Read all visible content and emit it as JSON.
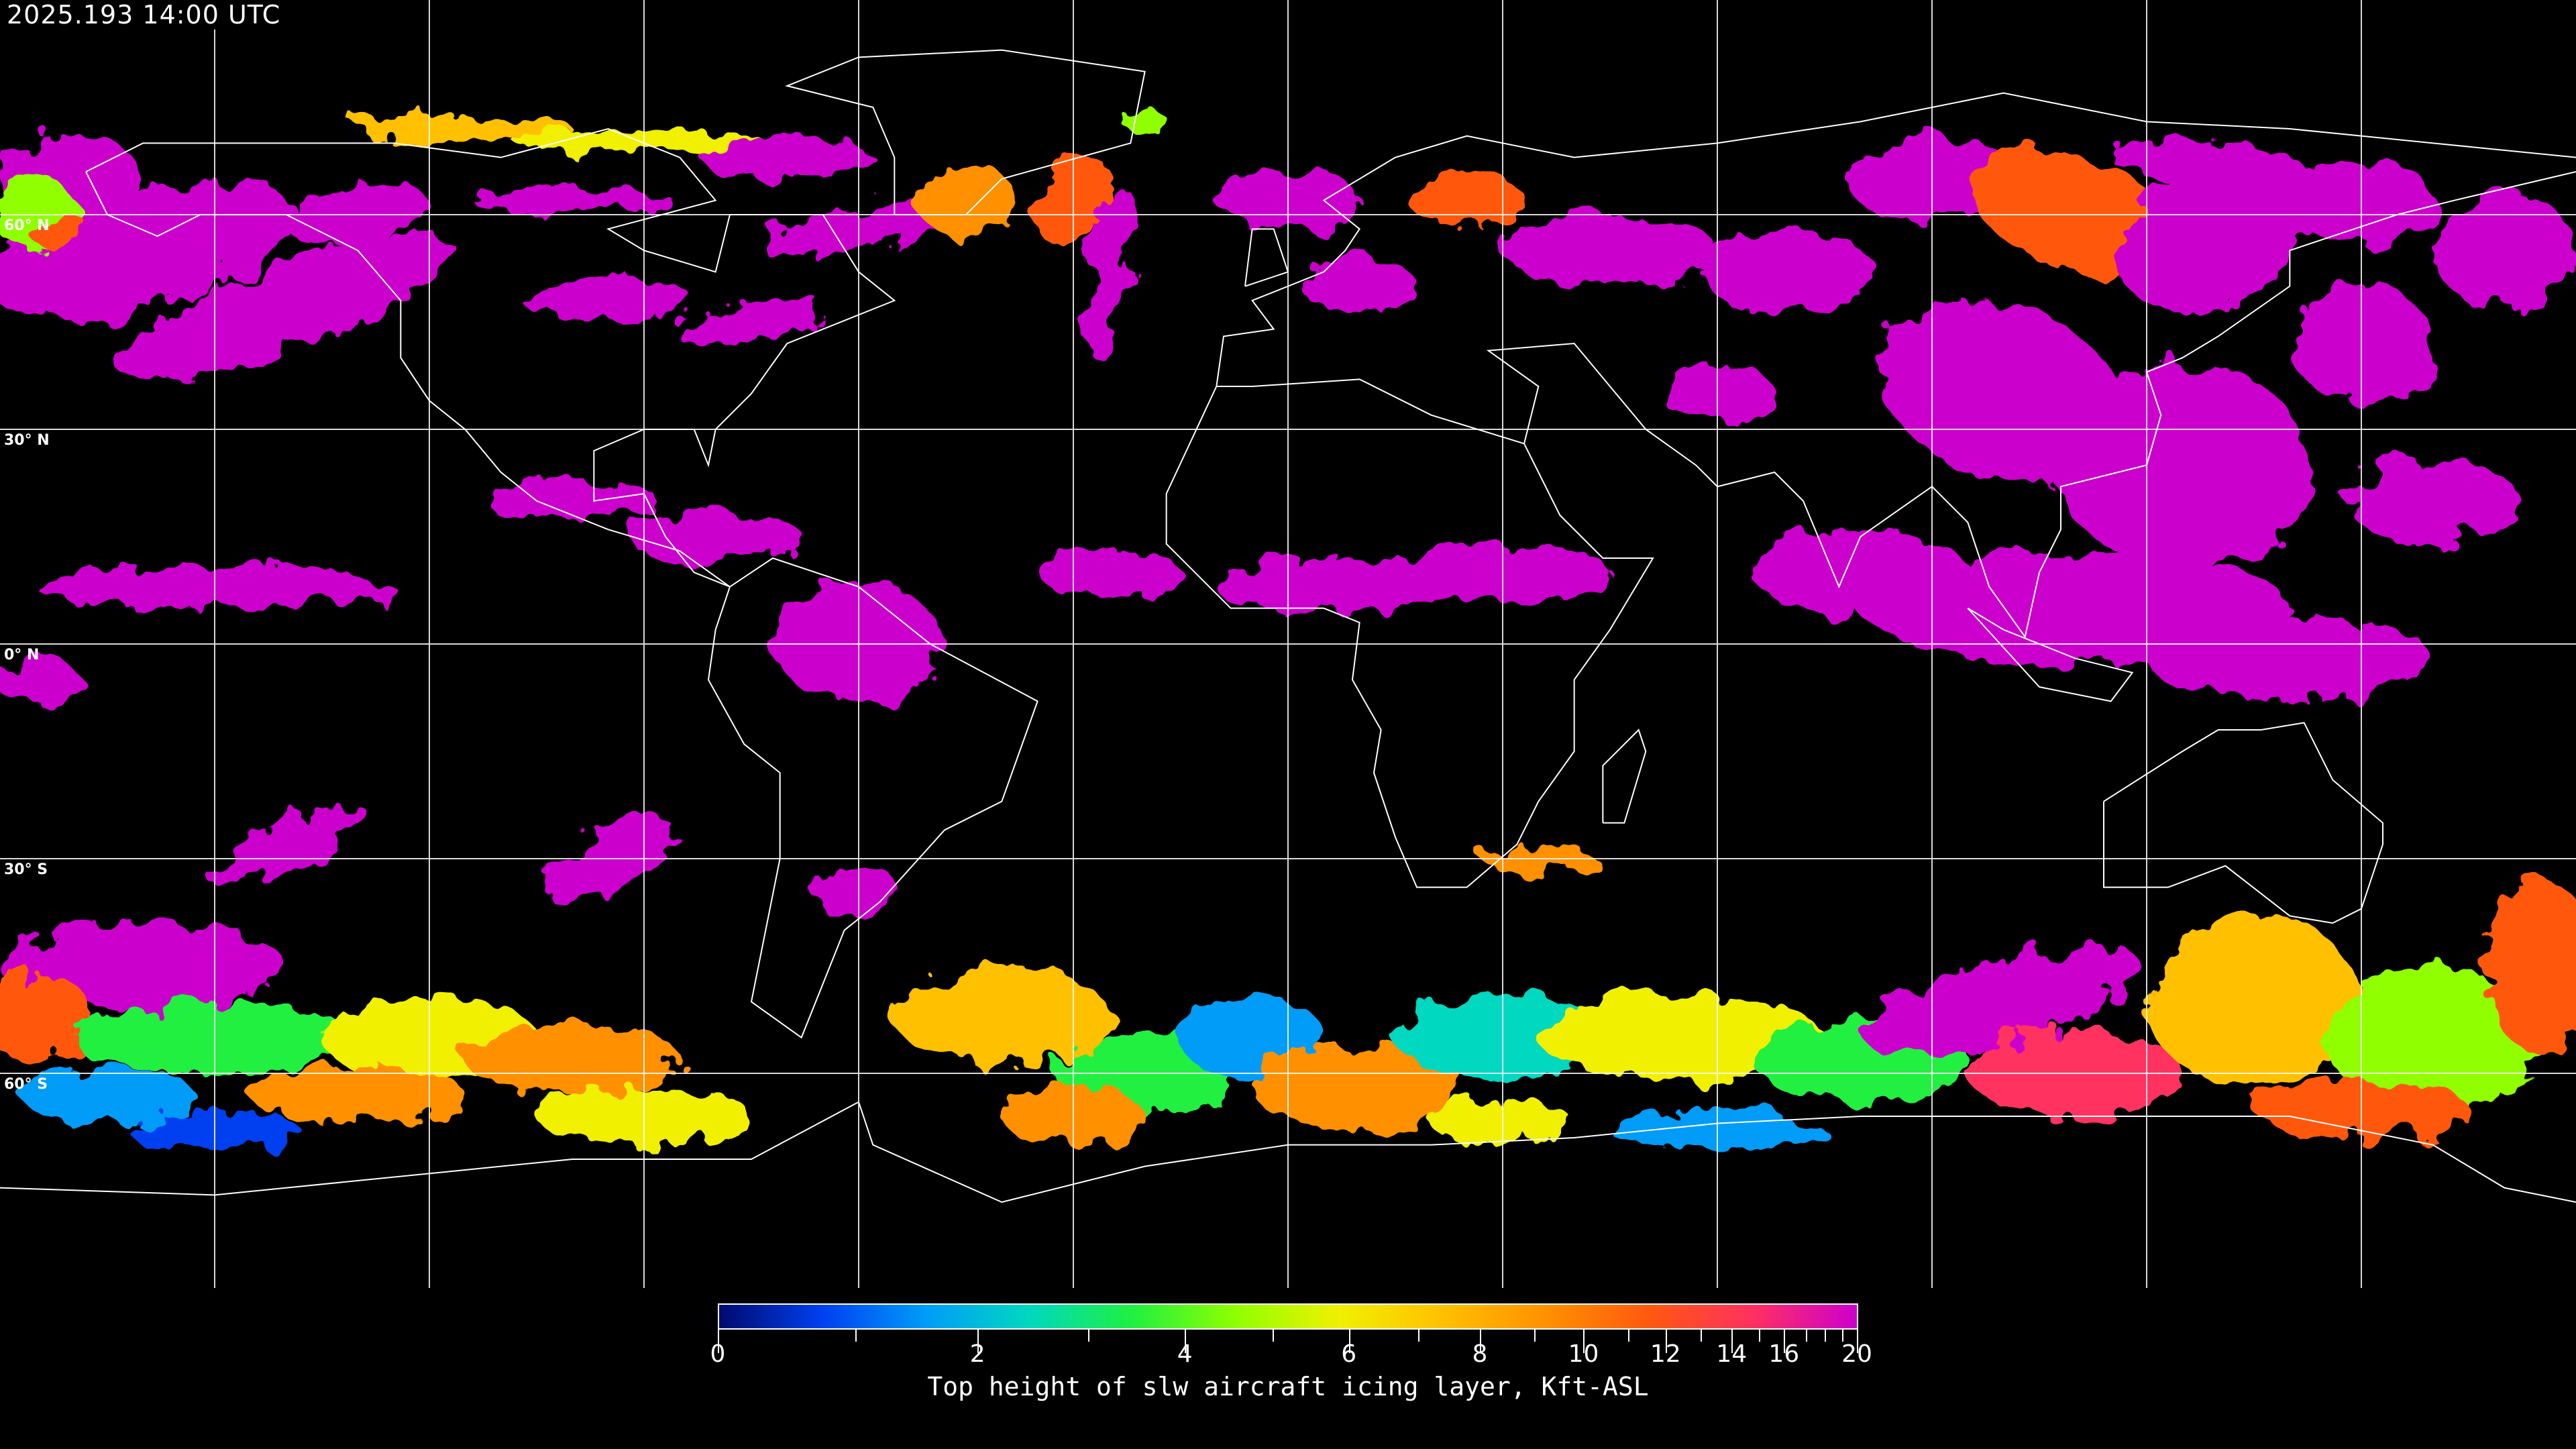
{
  "title": "2025.193 14:00 UTC",
  "map": {
    "projection": "equirectangular",
    "lon_range": [
      -180,
      180
    ],
    "lat_range": [
      -90,
      90
    ],
    "grid_spacing_deg": 30,
    "grid_color": "#ffffff",
    "coastline_color": "#ffffff",
    "background_color": "#000000",
    "lat_labels": [
      {
        "lat": 60,
        "text": "60° N"
      },
      {
        "lat": 30,
        "text": "30° N"
      },
      {
        "lat": 0,
        "text": "0° N"
      },
      {
        "lat": -30,
        "text": "30° S"
      },
      {
        "lat": -60,
        "text": "60° S"
      }
    ]
  },
  "colorbar": {
    "label": "Top height of slw aircraft icing layer, Kft-ASL",
    "min": 0,
    "max": 20,
    "tick_labels": [
      "0",
      "2",
      "4",
      "6",
      "8",
      "10",
      "12",
      "14",
      "16",
      "20"
    ],
    "major_ticks": [
      0,
      2,
      4,
      6,
      8,
      10,
      12,
      14,
      16,
      20
    ],
    "minor_ticks": [
      1,
      3,
      5,
      7,
      9,
      11,
      13,
      15,
      17,
      18,
      19
    ],
    "colors": [
      "#000a6e",
      "#0040f0",
      "#009cf8",
      "#00d8c0",
      "#20f040",
      "#90ff00",
      "#f0f000",
      "#ffc000",
      "#ff9000",
      "#ff5810",
      "#ff3060",
      "#cc00cc"
    ]
  }
}
